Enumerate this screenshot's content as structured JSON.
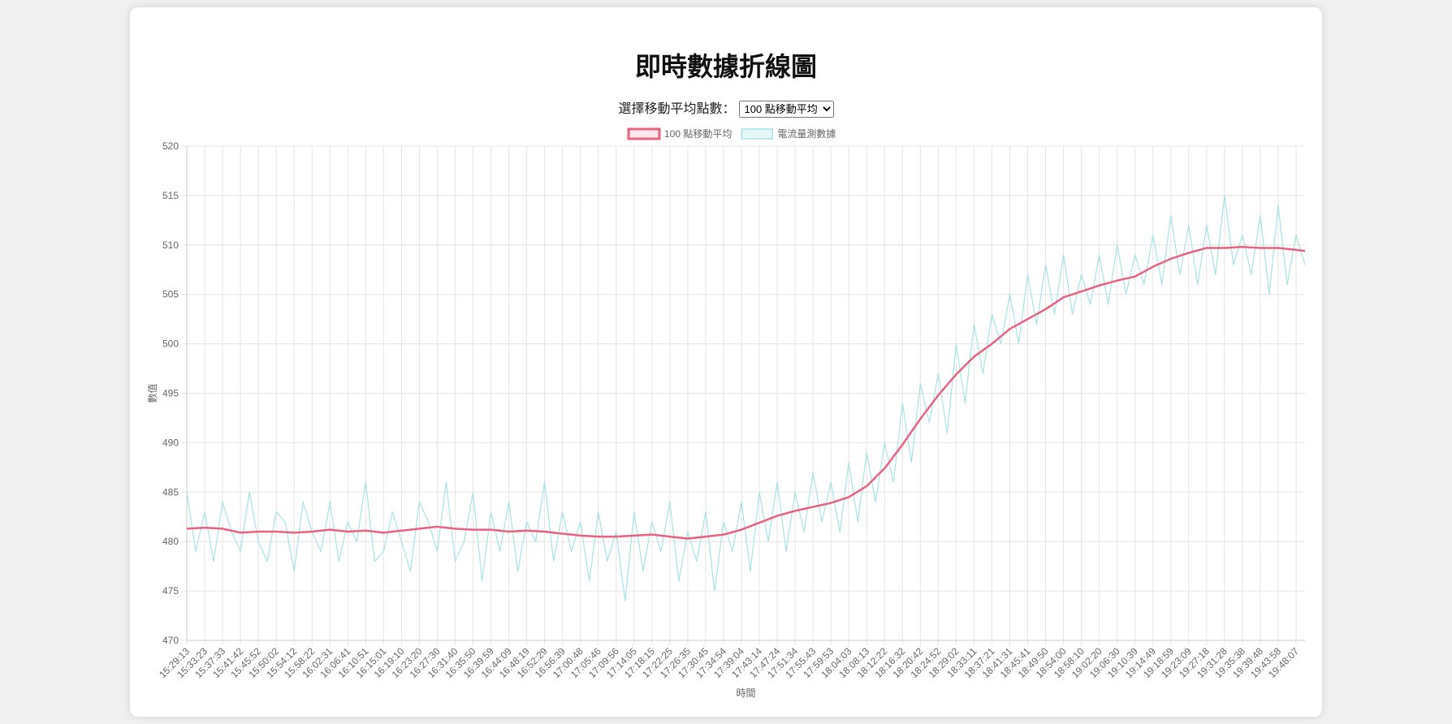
{
  "title": "即時數據折線圖",
  "controls": {
    "label": "選擇移動平均點數：",
    "select_options": [
      "100 點移動平均"
    ]
  },
  "chart_data": {
    "type": "line",
    "categories": [
      "15:29:13",
      null,
      "15:33:23",
      null,
      "15:37:33",
      null,
      "15:41:42",
      null,
      "15:45:52",
      null,
      "15:50:02",
      null,
      "15:54:12",
      null,
      "15:58:22",
      null,
      "16:02:31",
      null,
      "16:06:41",
      null,
      "16:10:51",
      null,
      "16:15:01",
      null,
      "16:19:10",
      null,
      "16:23:20",
      null,
      "16:27:30",
      null,
      "16:31:40",
      null,
      "16:35:50",
      null,
      "16:39:59",
      null,
      "16:44:09",
      null,
      "16:48:19",
      null,
      "16:52:29",
      null,
      "16:56:39",
      null,
      "17:00:48",
      null,
      "17:05:46",
      null,
      "17:09:56",
      null,
      "17:14:05",
      null,
      "17:18:15",
      null,
      "17:22:25",
      null,
      "17:26:35",
      null,
      "17:30:45",
      null,
      "17:34:54",
      null,
      "17:39:04",
      null,
      "17:43:14",
      null,
      "17:47:24",
      null,
      "17:51:34",
      null,
      "17:55:43",
      null,
      "17:59:53",
      null,
      "18:04:03",
      null,
      "18:08:13",
      null,
      "18:12:22",
      null,
      "18:16:32",
      null,
      "18:20:42",
      null,
      "18:24:52",
      null,
      "18:29:02",
      null,
      "18:33:11",
      null,
      "18:37:21",
      null,
      "18:41:31",
      null,
      "18:45:41",
      null,
      "18:49:50",
      null,
      "18:54:00",
      null,
      "18:58:10",
      null,
      "19:02:20",
      null,
      "19:06:30",
      null,
      "19:10:39",
      null,
      "19:14:49",
      null,
      "19:18:59",
      null,
      "19:23:09",
      null,
      "19:27:18",
      null,
      "19:31:28",
      null,
      "19:35:38",
      null,
      "19:39:48",
      null,
      "19:43:58",
      null,
      "19:48:07",
      null
    ],
    "series": [
      {
        "name": "100 點移動平均",
        "color": "#e8637f",
        "fill": "rgba(232,99,127,0.15)",
        "values": [
          481.3,
          481.35,
          481.4,
          481.35,
          481.3,
          481.1,
          480.9,
          480.95,
          481.0,
          481.0,
          481.0,
          480.95,
          480.9,
          480.95,
          481.0,
          481.1,
          481.2,
          481.1,
          481.0,
          481.05,
          481.1,
          481.0,
          480.9,
          481.0,
          481.1,
          481.2,
          481.3,
          481.4,
          481.5,
          481.4,
          481.3,
          481.25,
          481.2,
          481.2,
          481.2,
          481.1,
          481.0,
          481.05,
          481.1,
          481.05,
          481.0,
          480.9,
          480.8,
          480.7,
          480.6,
          480.55,
          480.5,
          480.5,
          480.5,
          480.55,
          480.6,
          480.65,
          480.7,
          480.6,
          480.5,
          480.4,
          480.3,
          480.4,
          480.5,
          480.6,
          480.7,
          480.95,
          481.2,
          481.55,
          481.9,
          482.25,
          482.6,
          482.85,
          483.1,
          483.3,
          483.5,
          483.7,
          483.9,
          484.2,
          484.5,
          485.05,
          485.6,
          486.5,
          487.4,
          488.6,
          489.8,
          491.1,
          492.4,
          493.6,
          494.8,
          495.85,
          496.9,
          497.8,
          498.7,
          499.35,
          500.0,
          500.75,
          501.5,
          502.0,
          502.5,
          503.0,
          503.5,
          504.1,
          504.7,
          505.0,
          505.3,
          505.6,
          505.9,
          506.15,
          506.4,
          506.6,
          506.8,
          507.3,
          507.8,
          508.2,
          508.6,
          508.9,
          509.2,
          509.45,
          509.7,
          509.7,
          509.7,
          509.75,
          509.8,
          509.75,
          509.7,
          509.7,
          509.7,
          509.6,
          509.5,
          509.4
        ]
      },
      {
        "name": "電流量測數據",
        "color": "#a8e3e6",
        "fill": "rgba(168,227,230,0.3)",
        "values": [
          485,
          479,
          483,
          478,
          484,
          481,
          479,
          485,
          480,
          478,
          483,
          482,
          477,
          484,
          481,
          479,
          484,
          478,
          482,
          480,
          486,
          478,
          479,
          483,
          480,
          477,
          484,
          482,
          479,
          486,
          478,
          480,
          485,
          476,
          483,
          479,
          484,
          477,
          482,
          480,
          486,
          478,
          483,
          479,
          482,
          476,
          483,
          478,
          481,
          474,
          483,
          477,
          482,
          479,
          484,
          476,
          481,
          478,
          483,
          475,
          482,
          479,
          484,
          477,
          485,
          480,
          486,
          479,
          485,
          481,
          487,
          482,
          486,
          481,
          488,
          482,
          489,
          484,
          490,
          486,
          494,
          488,
          496,
          492,
          497,
          491,
          500,
          494,
          502,
          497,
          503,
          500,
          505,
          500,
          507,
          502,
          508,
          503,
          509,
          503,
          507,
          504,
          509,
          504,
          510,
          505,
          509,
          506,
          511,
          506,
          513,
          507,
          512,
          506,
          512,
          507,
          515,
          508,
          511,
          507,
          513,
          505,
          514,
          506,
          511,
          508
        ]
      }
    ],
    "ylim": [
      470,
      520
    ],
    "yticks": [
      470,
      475,
      480,
      485,
      490,
      495,
      500,
      505,
      510,
      515,
      520
    ],
    "xlabel": "時間",
    "ylabel": "數值",
    "grid": true,
    "legend": "top"
  }
}
